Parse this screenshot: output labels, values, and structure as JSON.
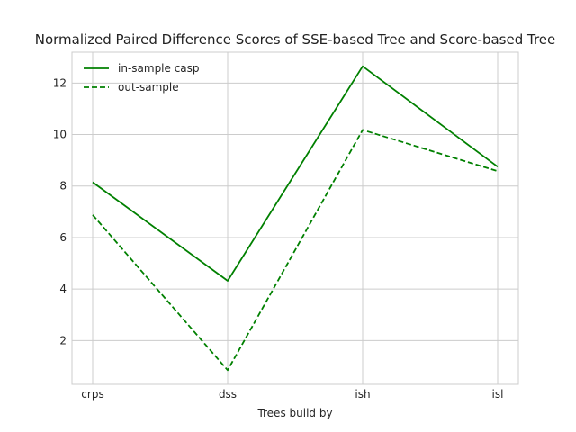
{
  "chart_data": {
    "type": "line",
    "title": "Normalized Paired Difference Scores of SSE-based Tree and Score-based Tree",
    "xlabel": "Trees build by",
    "ylabel": "",
    "categories": [
      "crps",
      "dss",
      "ish",
      "isl"
    ],
    "series": [
      {
        "name": "in-sample casp",
        "values": [
          8.15,
          4.32,
          12.65,
          8.75
        ],
        "color": "#008000",
        "style": "solid"
      },
      {
        "name": "out-sample",
        "values": [
          6.88,
          0.85,
          10.18,
          8.58
        ],
        "color": "#008000",
        "style": "dashed"
      }
    ],
    "ylim": [
      0.3,
      13.2
    ],
    "yticks": [
      2,
      4,
      6,
      8,
      10,
      12
    ],
    "grid": true,
    "legend_position": "top-left"
  }
}
